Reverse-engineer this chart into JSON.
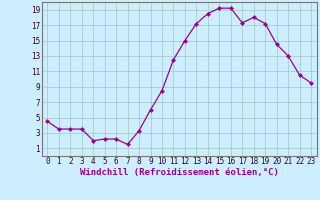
{
  "x": [
    0,
    1,
    2,
    3,
    4,
    5,
    6,
    7,
    8,
    9,
    10,
    11,
    12,
    13,
    14,
    15,
    16,
    17,
    18,
    19,
    20,
    21,
    22,
    23
  ],
  "y": [
    4.5,
    3.5,
    3.5,
    3.5,
    2.0,
    2.2,
    2.2,
    1.5,
    3.3,
    6.0,
    8.5,
    12.5,
    15.0,
    17.2,
    18.5,
    19.2,
    19.2,
    17.3,
    18.0,
    17.2,
    14.5,
    13.0,
    10.5,
    9.5
  ],
  "line_color": "#990099",
  "marker": "D",
  "marker_size": 2.5,
  "bg_color": "#cceeff",
  "grid_color": "#aacccc",
  "xlabel": "Windchill (Refroidissement éolien,°C)",
  "xlim": [
    -0.5,
    23.5
  ],
  "ylim": [
    0,
    20
  ],
  "xticks": [
    0,
    1,
    2,
    3,
    4,
    5,
    6,
    7,
    8,
    9,
    10,
    11,
    12,
    13,
    14,
    15,
    16,
    17,
    18,
    19,
    20,
    21,
    22,
    23
  ],
  "yticks": [
    1,
    3,
    5,
    7,
    9,
    11,
    13,
    15,
    17,
    19
  ],
  "label_fontsize": 6.5,
  "tick_fontsize": 5.5
}
